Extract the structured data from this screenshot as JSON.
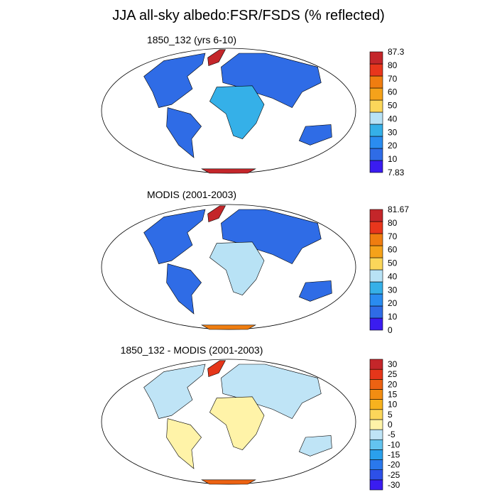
{
  "title": "JJA all-sky albedo:FSR/FSDS (% reflected)",
  "panels": [
    {
      "id": "model",
      "title": "1850_132 (yrs 6-10)",
      "colorbar": {
        "colors": [
          "#3a1cf0",
          "#2f6ce6",
          "#2a8cf0",
          "#35b0e8",
          "#b8e2f5",
          "#fbd65a",
          "#f5a21a",
          "#ef7d10",
          "#e8361c",
          "#c4262a"
        ],
        "labels": [
          "7.83",
          "10",
          "20",
          "30",
          "40",
          "50",
          "60",
          "70",
          "80",
          "87.3"
        ]
      }
    },
    {
      "id": "obs",
      "title": "MODIS (2001-2003)",
      "colorbar": {
        "colors": [
          "#3a1cf0",
          "#2f6ce6",
          "#2a8cf0",
          "#35b0e8",
          "#b8e2f5",
          "#fbd65a",
          "#f5a21a",
          "#ef7d10",
          "#e8361c",
          "#c4262a"
        ],
        "labels": [
          "0",
          "10",
          "20",
          "30",
          "40",
          "50",
          "60",
          "70",
          "80",
          "81.67"
        ]
      }
    },
    {
      "id": "diff",
      "title": "1850_132 - MODIS (2001-2003)",
      "colorbar": {
        "colors": [
          "#3a1cf0",
          "#2d50e8",
          "#2a78ec",
          "#2aa0ec",
          "#63c4ef",
          "#bfe4f6",
          "#fff3a8",
          "#fbd65a",
          "#f7b21e",
          "#f28d12",
          "#ec6212",
          "#e5361a",
          "#c4262a"
        ],
        "labels": [
          "-30",
          "-25",
          "-20",
          "-15",
          "-10",
          "-5",
          "0",
          "5",
          "10",
          "15",
          "20",
          "25",
          "30"
        ]
      }
    }
  ]
}
